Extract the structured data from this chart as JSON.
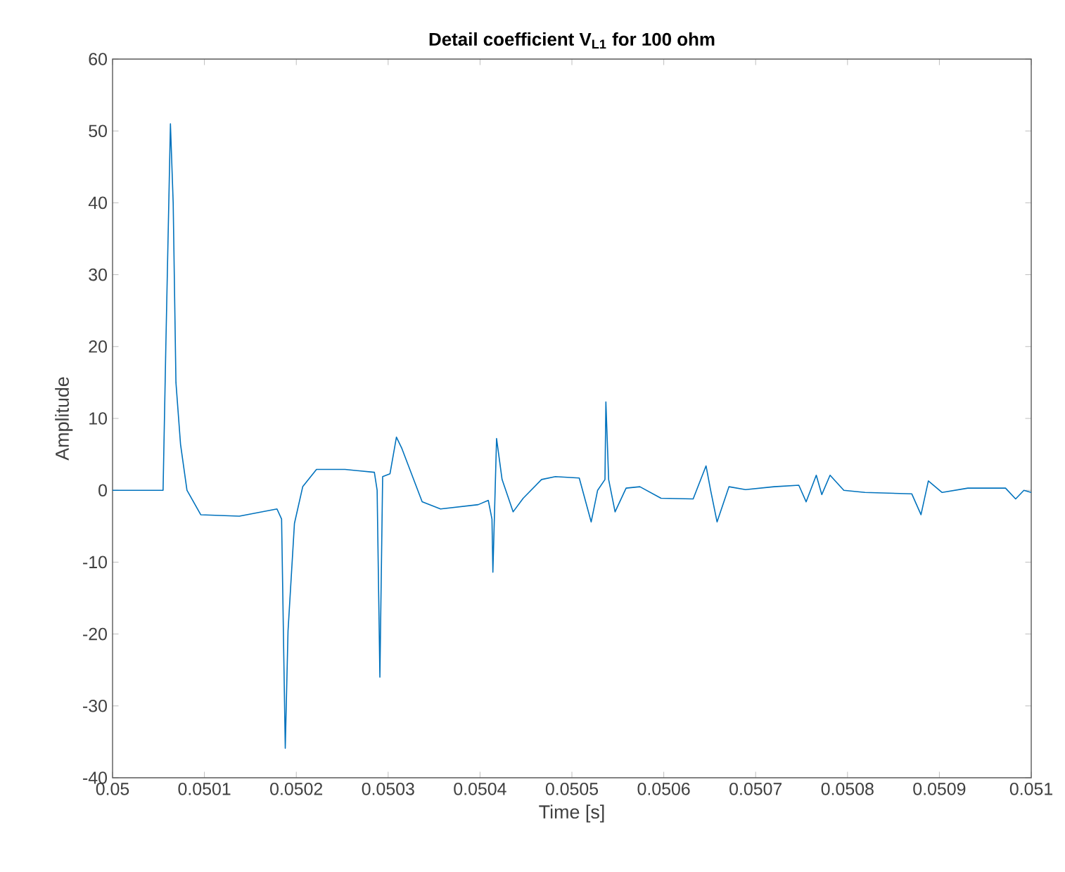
{
  "chart_data": {
    "type": "line",
    "title": "Detail coefficient V$_{L1}$ for 100 ohm",
    "xlabel": "Time [s]",
    "ylabel": "Amplitude",
    "x": [
      0.05,
      0.050055,
      0.050058,
      0.050063,
      0.050066,
      0.050069,
      0.050074,
      0.050081,
      0.050096,
      0.050138,
      0.050179,
      0.050184,
      0.050188,
      0.050191,
      0.050198,
      0.050207,
      0.050222,
      0.050253,
      0.050285,
      0.050288,
      0.050291,
      0.050294,
      0.050302,
      0.050309,
      0.050315,
      0.050337,
      0.050357,
      0.050398,
      0.050409,
      0.050413,
      0.050414,
      0.050418,
      0.050424,
      0.050436,
      0.050447,
      0.050467,
      0.050482,
      0.050508,
      0.050521,
      0.050528,
      0.050536,
      0.050537,
      0.05054,
      0.050547,
      0.050559,
      0.050574,
      0.050597,
      0.050632,
      0.050646,
      0.050651,
      0.050658,
      0.050671,
      0.050689,
      0.05072,
      0.050747,
      0.050755,
      0.050766,
      0.050772,
      0.050781,
      0.050796,
      0.050819,
      0.05087,
      0.05088,
      0.050888,
      0.050903,
      0.050931,
      0.050972,
      0.050983,
      0.050992,
      0.051
    ],
    "values": [
      0,
      0,
      20,
      51,
      40,
      15,
      6.4,
      0,
      -3.4,
      -3.6,
      -2.6,
      -4,
      -35.9,
      -19.6,
      -4.6,
      0.5,
      2.9,
      2.9,
      2.5,
      0,
      -26,
      1.9,
      2.3,
      7.4,
      5.8,
      -1.6,
      -2.6,
      -2.0,
      -1.4,
      -4,
      -11.4,
      7.2,
      1.5,
      -3.0,
      -1.1,
      1.5,
      1.9,
      1.7,
      -4.4,
      0,
      1.5,
      12.3,
      1.5,
      -3.0,
      0.3,
      0.5,
      -1.1,
      -1.2,
      3.4,
      0,
      -4.4,
      0.5,
      0.1,
      0.5,
      0.7,
      -1.6,
      2.1,
      -0.6,
      2.1,
      0,
      -0.3,
      -0.5,
      -3.4,
      1.3,
      -0.3,
      0.3,
      0.3,
      -1.2,
      0,
      -0.3
    ],
    "color": "#0072bd",
    "xlim": [
      0.05,
      0.051
    ],
    "ylim": [
      -40,
      60
    ],
    "xticks": [
      0.05,
      0.0501,
      0.0502,
      0.0503,
      0.0504,
      0.0505,
      0.0506,
      0.0507,
      0.0508,
      0.0509,
      0.051
    ],
    "yticks": [
      -40,
      -30,
      -20,
      -10,
      0,
      10,
      20,
      30,
      40,
      50,
      60
    ],
    "grid": false
  }
}
